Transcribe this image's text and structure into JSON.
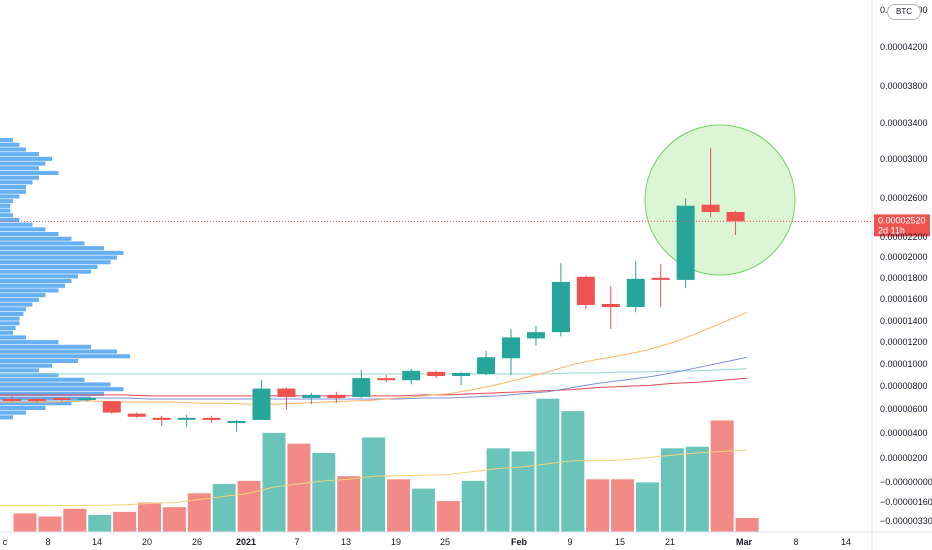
{
  "currency_badge": "BTC",
  "colors": {
    "up": "#26a69a",
    "down": "#ef5350",
    "volume_up": "#6bc4ba",
    "volume_down": "#f28b88",
    "ma_orange": "#ffb36b",
    "ma_blue": "#7e8fe0",
    "ma_red": "#e8475a",
    "ma_cyan": "#8fd8d2",
    "volume_profile": "#4ca3f0",
    "highlight_fill": "#d9f5d0",
    "highlight_stroke": "#66cc55",
    "price_line": "#ef5350"
  },
  "chart_data": {
    "type": "candlestick",
    "y_axis_ticks": [
      "0.00004400",
      "0.00004200",
      "0.00003800",
      "0.00003400",
      "0.00003000",
      "0.00002600",
      "0.00002200",
      "0.00002000",
      "0.00001800",
      "0.00001600",
      "0.00001400",
      "0.00001200",
      "0.00001000",
      "0.00000800",
      "0.00000600",
      "0.00000400",
      "0.00000200",
      "−0.00000000",
      "−0.00000160",
      "−0.00000330"
    ],
    "x_axis_ticks": [
      "c",
      "8",
      "14",
      "20",
      "26",
      "2021",
      "7",
      "13",
      "19",
      "25",
      "Feb",
      "9",
      "15",
      "21",
      "Mar",
      "8",
      "14"
    ],
    "current_price_label": "0.00002520",
    "countdown_label": "2d 11h",
    "current_price": 2.52e-05,
    "candles": [
      {
        "o": 8.2e-06,
        "h": 8.5e-06,
        "l": 7.9e-06,
        "c": 8.1e-06
      },
      {
        "o": 8.2e-06,
        "h": 8.3e-06,
        "l": 7.9e-06,
        "c": 8e-06
      },
      {
        "o": 8.3e-06,
        "h": 8.4e-06,
        "l": 8e-06,
        "c": 8.2e-06
      },
      {
        "o": 8.15e-06,
        "h": 8.3e-06,
        "l": 8e-06,
        "c": 8.3e-06
      },
      {
        "o": 8e-06,
        "h": 8e-06,
        "l": 6.8e-06,
        "c": 6.9e-06
      },
      {
        "o": 6.8e-06,
        "h": 6.9e-06,
        "l": 6.4e-06,
        "c": 6.5e-06
      },
      {
        "o": 6.4e-06,
        "h": 6.6e-06,
        "l": 5.6e-06,
        "c": 6.2e-06
      },
      {
        "o": 6.3e-06,
        "h": 6.7e-06,
        "l": 5.5e-06,
        "c": 6.4e-06
      },
      {
        "o": 6.4e-06,
        "h": 6.6e-06,
        "l": 5.9e-06,
        "c": 6.2e-06
      },
      {
        "o": 6.1e-06,
        "h": 6.2e-06,
        "l": 5.1e-06,
        "c": 6.1e-06
      },
      {
        "o": 6.2e-06,
        "h": 1e-05,
        "l": 6.2e-06,
        "c": 9.2e-06
      },
      {
        "o": 9.2e-06,
        "h": 9.3e-06,
        "l": 7.2e-06,
        "c": 8.4e-06
      },
      {
        "o": 8.3e-06,
        "h": 8.8e-06,
        "l": 7.7e-06,
        "c": 8.6e-06
      },
      {
        "o": 8.6e-06,
        "h": 8.9e-06,
        "l": 7.8e-06,
        "c": 8.3e-06
      },
      {
        "o": 8.4e-06,
        "h": 1.1e-05,
        "l": 8.3e-06,
        "c": 1.02e-05
      },
      {
        "o": 1.02e-05,
        "h": 1.05e-05,
        "l": 9.8e-06,
        "c": 1e-05
      },
      {
        "o": 1e-05,
        "h": 1.11e-05,
        "l": 9.6e-06,
        "c": 1.09e-05
      },
      {
        "o": 1.08e-05,
        "h": 1.09e-05,
        "l": 1.02e-05,
        "c": 1.04e-05
      },
      {
        "o": 1.04e-05,
        "h": 1.08e-05,
        "l": 9.5e-06,
        "c": 1.07e-05
      },
      {
        "o": 1.06e-05,
        "h": 1.28e-05,
        "l": 1.05e-05,
        "c": 1.22e-05
      },
      {
        "o": 1.21e-05,
        "h": 1.49e-05,
        "l": 1.05e-05,
        "c": 1.41e-05
      },
      {
        "o": 1.4e-05,
        "h": 1.52e-05,
        "l": 1.33e-05,
        "c": 1.46e-05
      },
      {
        "o": 1.46e-05,
        "h": 2.12e-05,
        "l": 1.42e-05,
        "c": 1.94e-05
      },
      {
        "o": 1.99e-05,
        "h": 2e-05,
        "l": 1.68e-05,
        "c": 1.72e-05
      },
      {
        "o": 1.73e-05,
        "h": 1.9e-05,
        "l": 1.49e-05,
        "c": 1.7e-05
      },
      {
        "o": 1.7e-05,
        "h": 2.14e-05,
        "l": 1.65e-05,
        "c": 1.97e-05
      },
      {
        "o": 1.98e-05,
        "h": 2.11e-05,
        "l": 1.7e-05,
        "c": 1.96e-05
      },
      {
        "o": 1.96e-05,
        "h": 2.74e-05,
        "l": 1.88e-05,
        "c": 2.67e-05
      },
      {
        "o": 2.68e-05,
        "h": 3.22e-05,
        "l": 2.56e-05,
        "c": 2.61e-05
      },
      {
        "o": 2.61e-05,
        "h": 2.62e-05,
        "l": 2.39e-05,
        "c": 2.52e-05
      }
    ],
    "volume": [
      {
        "v": 0.6,
        "up": false
      },
      {
        "v": 0.5,
        "up": false
      },
      {
        "v": 0.75,
        "up": false
      },
      {
        "v": 0.55,
        "up": true
      },
      {
        "v": 0.65,
        "up": false
      },
      {
        "v": 0.95,
        "up": false
      },
      {
        "v": 0.8,
        "up": false
      },
      {
        "v": 1.25,
        "up": false
      },
      {
        "v": 1.55,
        "up": true
      },
      {
        "v": 1.65,
        "up": false
      },
      {
        "v": 3.2,
        "up": true
      },
      {
        "v": 2.85,
        "up": false
      },
      {
        "v": 2.55,
        "up": true
      },
      {
        "v": 1.8,
        "up": false
      },
      {
        "v": 3.05,
        "up": true
      },
      {
        "v": 1.7,
        "up": false
      },
      {
        "v": 1.4,
        "up": true
      },
      {
        "v": 1.0,
        "up": false
      },
      {
        "v": 1.65,
        "up": true
      },
      {
        "v": 2.7,
        "up": true
      },
      {
        "v": 2.6,
        "up": true
      },
      {
        "v": 4.3,
        "up": true
      },
      {
        "v": 3.9,
        "up": true
      },
      {
        "v": 1.7,
        "up": false
      },
      {
        "v": 1.7,
        "up": false
      },
      {
        "v": 1.6,
        "up": true
      },
      {
        "v": 2.7,
        "up": true
      },
      {
        "v": 2.75,
        "up": true
      },
      {
        "v": 3.6,
        "up": false
      },
      {
        "v": 0.45,
        "up": false
      }
    ],
    "volume_ma": [
      0.85,
      0.85,
      0.86,
      0.86,
      0.88,
      0.92,
      0.95,
      1.05,
      1.15,
      1.25,
      1.45,
      1.55,
      1.65,
      1.7,
      1.8,
      1.82,
      1.83,
      1.85,
      1.95,
      2.05,
      2.1,
      2.2,
      2.3,
      2.3,
      2.32,
      2.4,
      2.48,
      2.55,
      2.6,
      2.65
    ],
    "ma_orange": [
      7.9e-06,
      7.9e-06,
      8e-06,
      8e-06,
      7.9e-06,
      7.9e-06,
      7.9e-06,
      7.8e-06,
      7.8e-06,
      7.7e-06,
      7.7e-06,
      7.8e-06,
      7.9e-06,
      8e-06,
      8.1e-06,
      8.3e-06,
      8.5e-06,
      8.7e-06,
      9.1e-06,
      9.6e-06,
      1.02e-05,
      1.08e-05,
      1.15e-05,
      1.2e-05,
      1.24e-05,
      1.29e-05,
      1.36e-05,
      1.45e-05,
      1.55e-05,
      1.65e-05
    ],
    "ma_blue": [
      8.3e-06,
      8.3e-06,
      8.3e-06,
      8.3e-06,
      8.3e-06,
      8.2e-06,
      8.2e-06,
      8.2e-06,
      8.2e-06,
      8.2e-06,
      8.2e-06,
      8.2e-06,
      8.2e-06,
      8.2e-06,
      8.2e-06,
      8.2e-06,
      8.3e-06,
      8.3e-06,
      8.4e-06,
      8.5e-06,
      8.7e-06,
      8.9e-06,
      9.3e-06,
      9.7e-06,
      1e-05,
      1.03e-05,
      1.07e-05,
      1.12e-05,
      1.17e-05,
      1.22e-05
    ],
    "ma_red": [
      8.6e-06,
      8.6e-06,
      8.6e-06,
      8.6e-06,
      8.6e-06,
      8.5e-06,
      8.5e-06,
      8.5e-06,
      8.5e-06,
      8.5e-06,
      8.5e-06,
      8.5e-06,
      8.5e-06,
      8.5e-06,
      8.5e-06,
      8.5e-06,
      8.6e-06,
      8.6e-06,
      8.7e-06,
      8.8e-06,
      8.9e-06,
      9e-06,
      9.1e-06,
      9.3e-06,
      9.4e-06,
      9.5e-06,
      9.7e-06,
      9.8e-06,
      1e-05,
      1.02e-05
    ],
    "ma_cyan": [
      1.06e-05,
      1.06e-05,
      1.06e-05,
      1.06e-05,
      1.06e-05,
      1.06e-05,
      1.06e-05,
      1.06e-05,
      1.06e-05,
      1.06e-05,
      1.06e-05,
      1.06e-05,
      1.06e-05,
      1.06e-05,
      1.06e-05,
      1.06e-05,
      1.06e-05,
      1.06e-05,
      1.06e-05,
      1.06e-05,
      1.06e-05,
      1.06e-05,
      1.07e-05,
      1.07e-05,
      1.08e-05,
      1.08e-05,
      1.09e-05,
      1.09e-05,
      1.1e-05,
      1.11e-05
    ],
    "volume_profile": [
      0.1,
      0.15,
      0.2,
      0.3,
      0.4,
      0.35,
      0.3,
      0.45,
      0.3,
      0.25,
      0.2,
      0.2,
      0.15,
      0.1,
      0.08,
      0.08,
      0.1,
      0.15,
      0.25,
      0.35,
      0.45,
      0.55,
      0.65,
      0.8,
      0.95,
      0.9,
      0.85,
      0.75,
      0.7,
      0.6,
      0.55,
      0.5,
      0.45,
      0.35,
      0.3,
      0.25,
      0.2,
      0.18,
      0.15,
      0.15,
      0.12,
      0.1,
      0.2,
      0.45,
      0.7,
      0.9,
      1.0,
      0.6,
      0.4,
      0.3,
      0.45,
      0.65,
      0.85,
      0.95,
      0.8,
      0.7,
      0.55,
      0.35,
      0.2,
      0.1
    ],
    "grid": false
  }
}
